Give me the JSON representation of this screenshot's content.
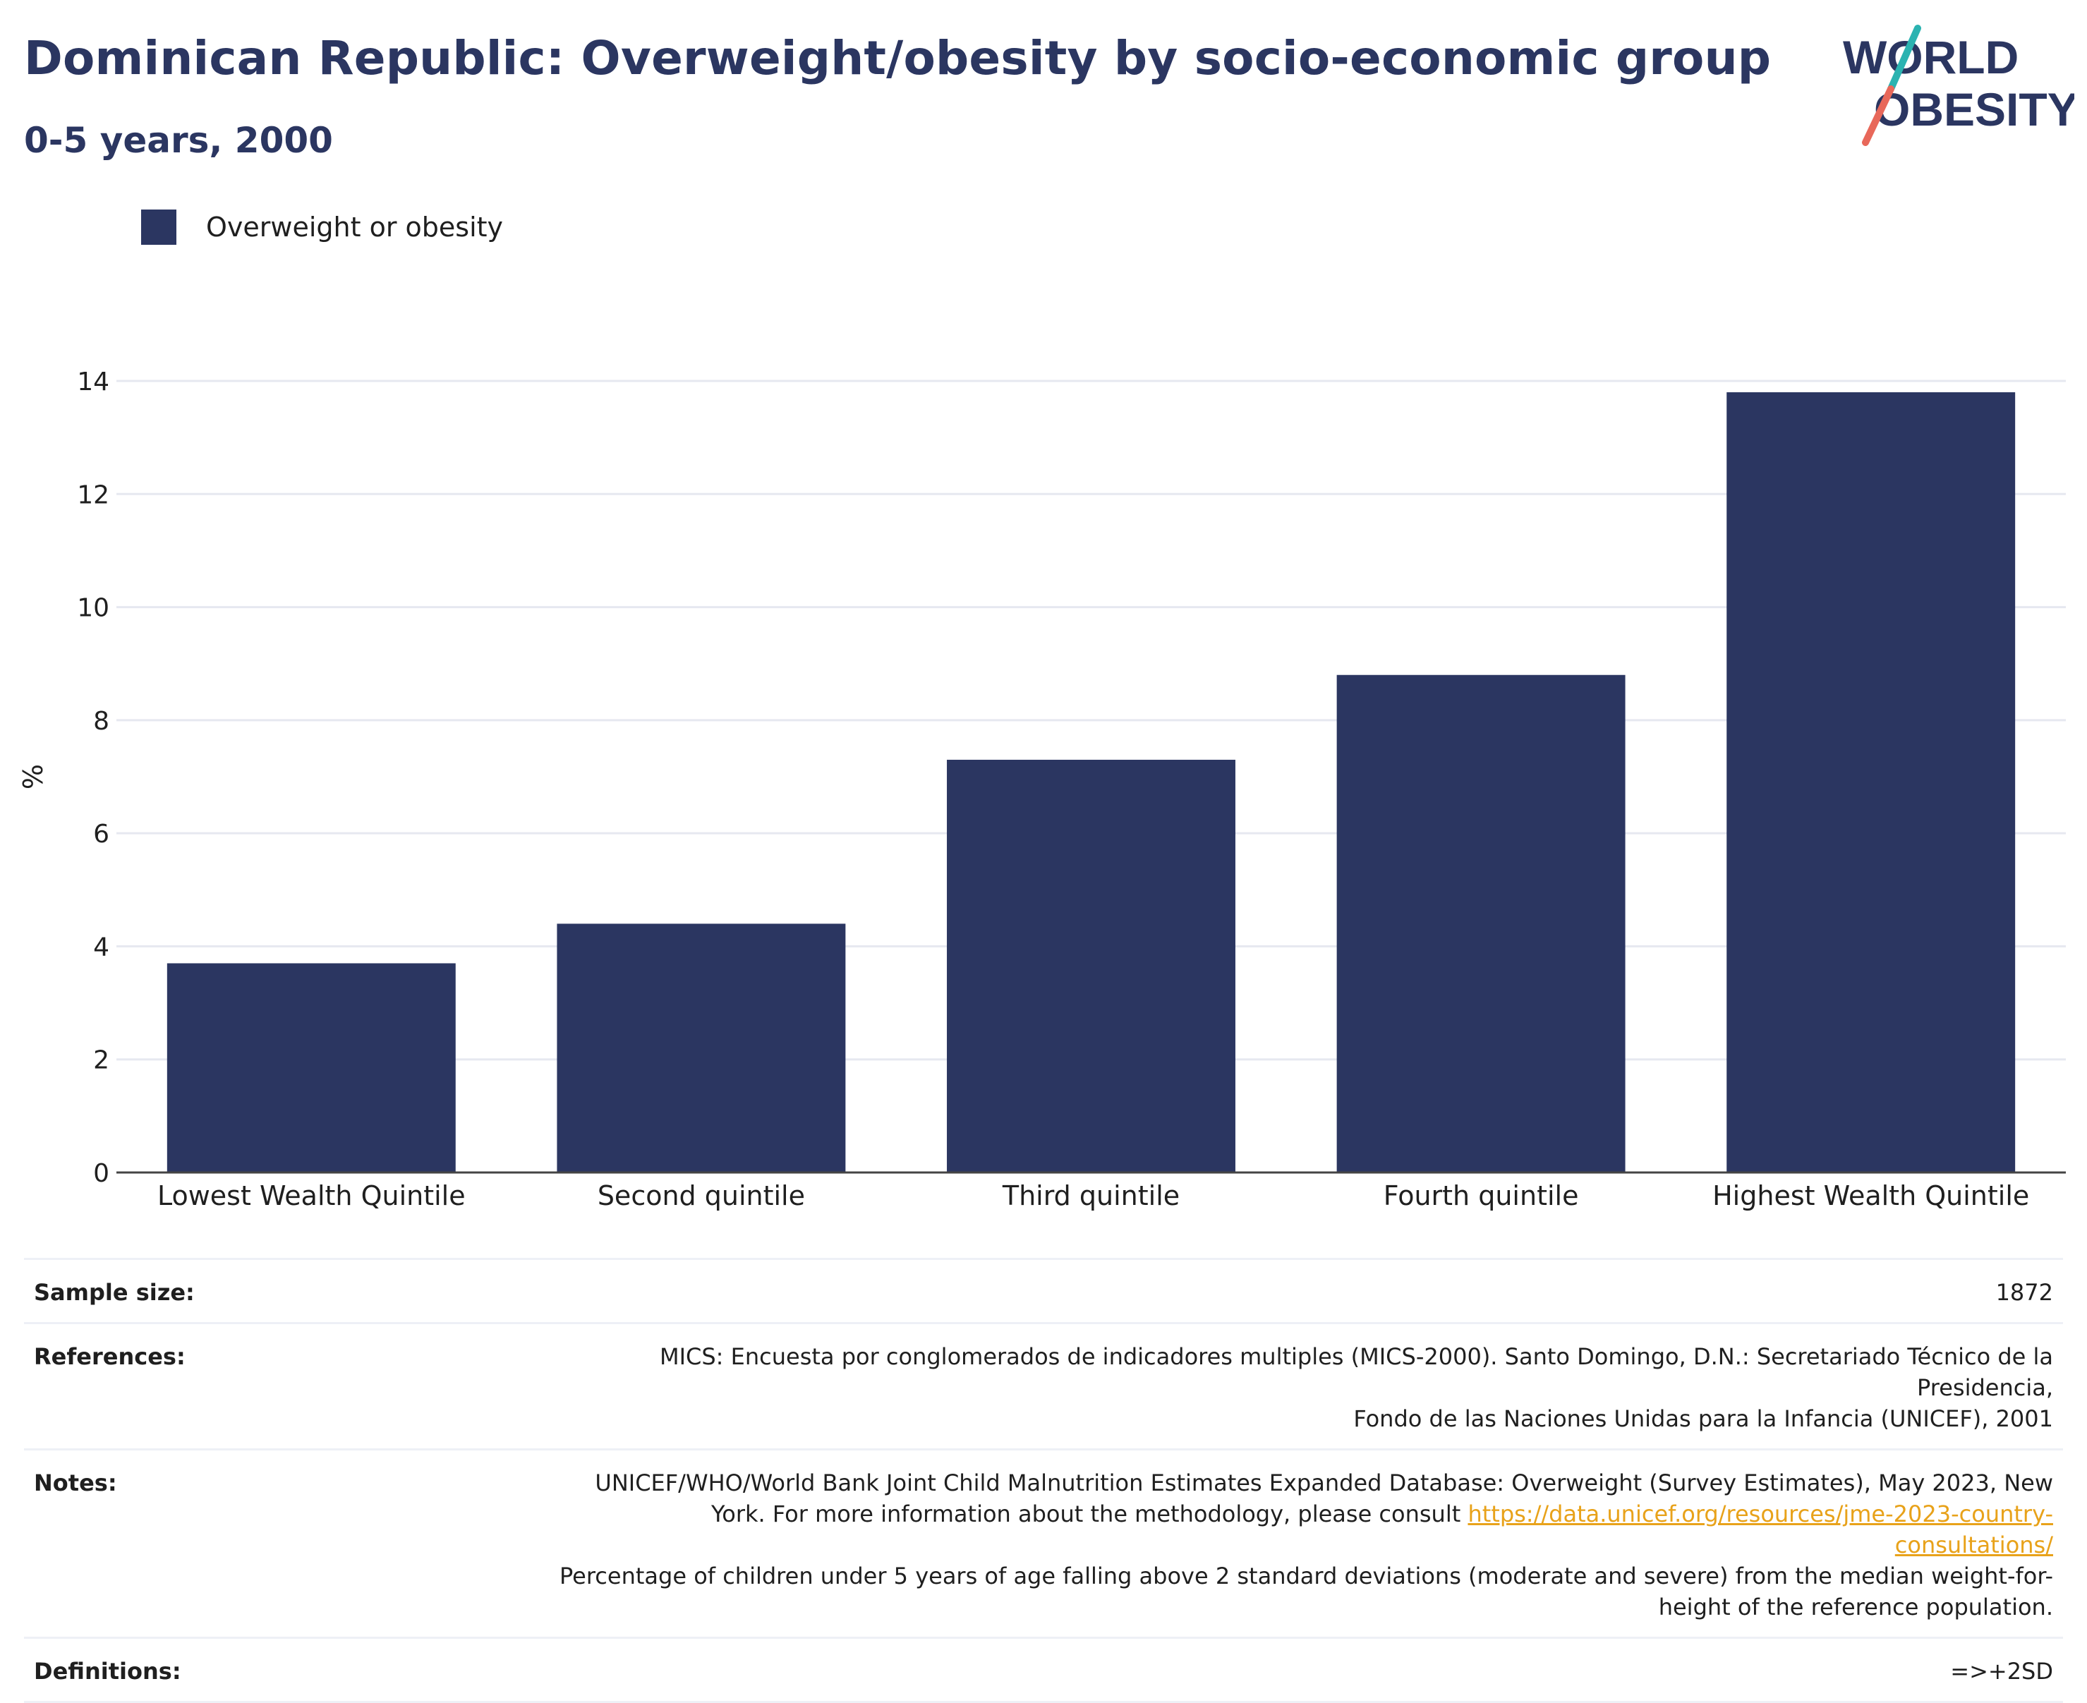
{
  "header": {
    "title": "Dominican Republic: Overweight/obesity by socio-economic group",
    "subtitle": "0-5 years, 2000"
  },
  "logo": {
    "line1": "WORLD",
    "line2": "OBESITY",
    "colors": {
      "text": "#2b3661",
      "slash_teal": "#2bb3b1",
      "slash_coral": "#e8685a"
    }
  },
  "legend": {
    "label": "Overweight or obesity",
    "color": "#2b3661"
  },
  "chart_data": {
    "type": "bar",
    "title": "Dominican Republic: Overweight/obesity by socio-economic group",
    "subtitle": "0-5 years, 2000",
    "categories": [
      "Lowest Wealth Quintile",
      "Second quintile",
      "Third quintile",
      "Fourth quintile",
      "Highest Wealth Quintile"
    ],
    "series": [
      {
        "name": "Overweight or obesity",
        "values": [
          3.7,
          4.4,
          7.3,
          8.8,
          13.8
        ],
        "color": "#2b3661"
      }
    ],
    "xlabel": "",
    "ylabel": "%",
    "ylim": [
      0,
      14
    ],
    "yticks": [
      0,
      2,
      4,
      6,
      8,
      10,
      12,
      14
    ],
    "grid": true,
    "legend_position": "top-left"
  },
  "info": {
    "sample_size": {
      "label": "Sample size:",
      "value": "1872"
    },
    "references": {
      "label": "References:",
      "line1": "MICS: Encuesta por conglomerados de indicadores multiples (MICS-2000). Santo Domingo, D.N.: Secretariado Técnico de la Presidencia,",
      "line2": "Fondo de las Naciones Unidas para la Infancia (UNICEF), 2001"
    },
    "notes": {
      "label": "Notes:",
      "line1": "UNICEF/WHO/World Bank Joint Child Malnutrition Estimates Expanded Database: Overweight (Survey Estimates), May 2023, New",
      "line2_prefix": "York. For more information about the methodology, please consult ",
      "link": "https://data.unicef.org/resources/jme-2023-country-consultations/",
      "line3": "Percentage of children under 5 years of age falling above 2 standard deviations (moderate and severe) from the median weight-for-",
      "line4": "height of the reference population."
    },
    "definitions": {
      "label": "Definitions:",
      "value": "=>+2SD"
    }
  }
}
